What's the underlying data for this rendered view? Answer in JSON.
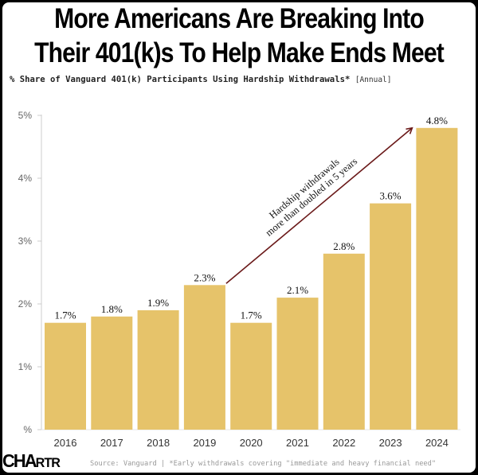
{
  "header": {
    "title_line1": "More Americans Are Breaking Into",
    "title_line2": "Their 401(k)s To Help Make Ends Meet",
    "subtitle": "% Share of Vanguard 401(k) Participants Using Hardship Withdrawals*",
    "subtitle_tag": "[Annual]"
  },
  "footer": {
    "logo_big": "CHA",
    "logo_small": "RTR",
    "source": "Source: Vanguard | *Early withdrawals covering \"immediate and heavy financial need\""
  },
  "colors": {
    "bar": "#E6C36A",
    "arrow": "#6B1A1A",
    "axis": "#cccccc"
  },
  "chart_data": {
    "type": "bar",
    "title": "More Americans Are Breaking Into Their 401(k)s To Help Make Ends Meet",
    "subtitle": "% Share of Vanguard 401(k) Participants Using Hardship Withdrawals* [Annual]",
    "xlabel": "",
    "ylabel": "",
    "categories": [
      "2016",
      "2017",
      "2018",
      "2019",
      "2020",
      "2021",
      "2022",
      "2023",
      "2024"
    ],
    "values": [
      1.7,
      1.8,
      1.9,
      2.3,
      1.7,
      2.1,
      2.8,
      3.6,
      4.8
    ],
    "value_labels": [
      "1.7%",
      "1.8%",
      "1.9%",
      "2.3%",
      "1.7%",
      "2.1%",
      "2.8%",
      "3.6%",
      "4.8%"
    ],
    "ylim": [
      0,
      5
    ],
    "yticks": [
      0,
      1,
      2,
      3,
      4,
      5
    ],
    "ytick_labels": [
      "%",
      "1%",
      "2%",
      "3%",
      "4%",
      "5%"
    ],
    "grid": false,
    "legend": "none",
    "annotation": {
      "text_line1": "Hardship withdrawals",
      "text_line2": "more than doubled in 5 years",
      "arrow_from": {
        "category": "2019",
        "value": 2.3
      },
      "arrow_to": {
        "category": "2024",
        "value": 4.8
      }
    }
  }
}
